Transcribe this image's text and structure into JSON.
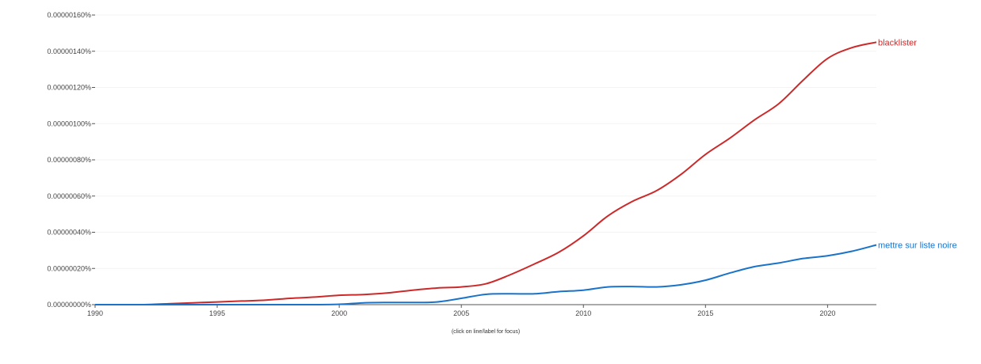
{
  "footnote": "(click on line/label for focus)",
  "chart_data": {
    "type": "line",
    "xlim": [
      1990,
      2022
    ],
    "ylim": [
      0,
      1.6e-09
    ],
    "x_ticks": [
      1990,
      1995,
      2000,
      2005,
      2010,
      2015,
      2020
    ],
    "x_tick_labels": [
      "1990",
      "1995",
      "2000",
      "2005",
      "2010",
      "2015",
      "2020"
    ],
    "y_ticks": [
      0,
      2e-10,
      4e-10,
      6e-10,
      8e-10,
      1e-09,
      1.2e-09,
      1.4e-09,
      1.6e-09
    ],
    "y_tick_labels": [
      "0.00000000%",
      "0.00000020%",
      "0.00000040%",
      "0.00000060%",
      "0.00000080%",
      "0.00000100%",
      "0.00000120%",
      "0.00000140%",
      "0.00000160%"
    ],
    "grid": true,
    "legend": "inline at line ends",
    "x": [
      1990,
      1991,
      1992,
      1993,
      1994,
      1995,
      1996,
      1997,
      1998,
      1999,
      2000,
      2001,
      2002,
      2003,
      2004,
      2005,
      2006,
      2007,
      2008,
      2009,
      2010,
      2011,
      2012,
      2013,
      2014,
      2015,
      2016,
      2017,
      2018,
      2019,
      2020,
      2021,
      2022
    ],
    "series": [
      {
        "name": "blacklister",
        "color": "#cc2a2a",
        "values": [
          0,
          0,
          0,
          5e-12,
          1e-11,
          1.5e-11,
          2e-11,
          2.5e-11,
          3.5e-11,
          4.2e-11,
          5.2e-11,
          5.6e-11,
          6.5e-11,
          8e-11,
          9.2e-11,
          9.8e-11,
          1.15e-10,
          1.65e-10,
          2.25e-10,
          2.9e-10,
          3.8e-10,
          4.9e-10,
          5.7e-10,
          6.3e-10,
          7.2e-10,
          8.3e-10,
          9.2e-10,
          1.02e-09,
          1.11e-09,
          1.24e-09,
          1.36e-09,
          1.42e-09,
          1.45e-09
        ]
      },
      {
        "name": "mettre sur liste noire",
        "color": "#1a73c8",
        "values": [
          0,
          0,
          0,
          0,
          0,
          0,
          0,
          0,
          0,
          0,
          2e-12,
          1e-11,
          1.2e-11,
          1.2e-11,
          1.5e-11,
          3.5e-11,
          5.7e-11,
          6e-11,
          6e-11,
          7.2e-11,
          8e-11,
          9.8e-11,
          1e-10,
          9.8e-11,
          1.1e-10,
          1.35e-10,
          1.75e-10,
          2.1e-10,
          2.3e-10,
          2.55e-10,
          2.7e-10,
          2.95e-10,
          3.3e-10
        ]
      }
    ]
  }
}
